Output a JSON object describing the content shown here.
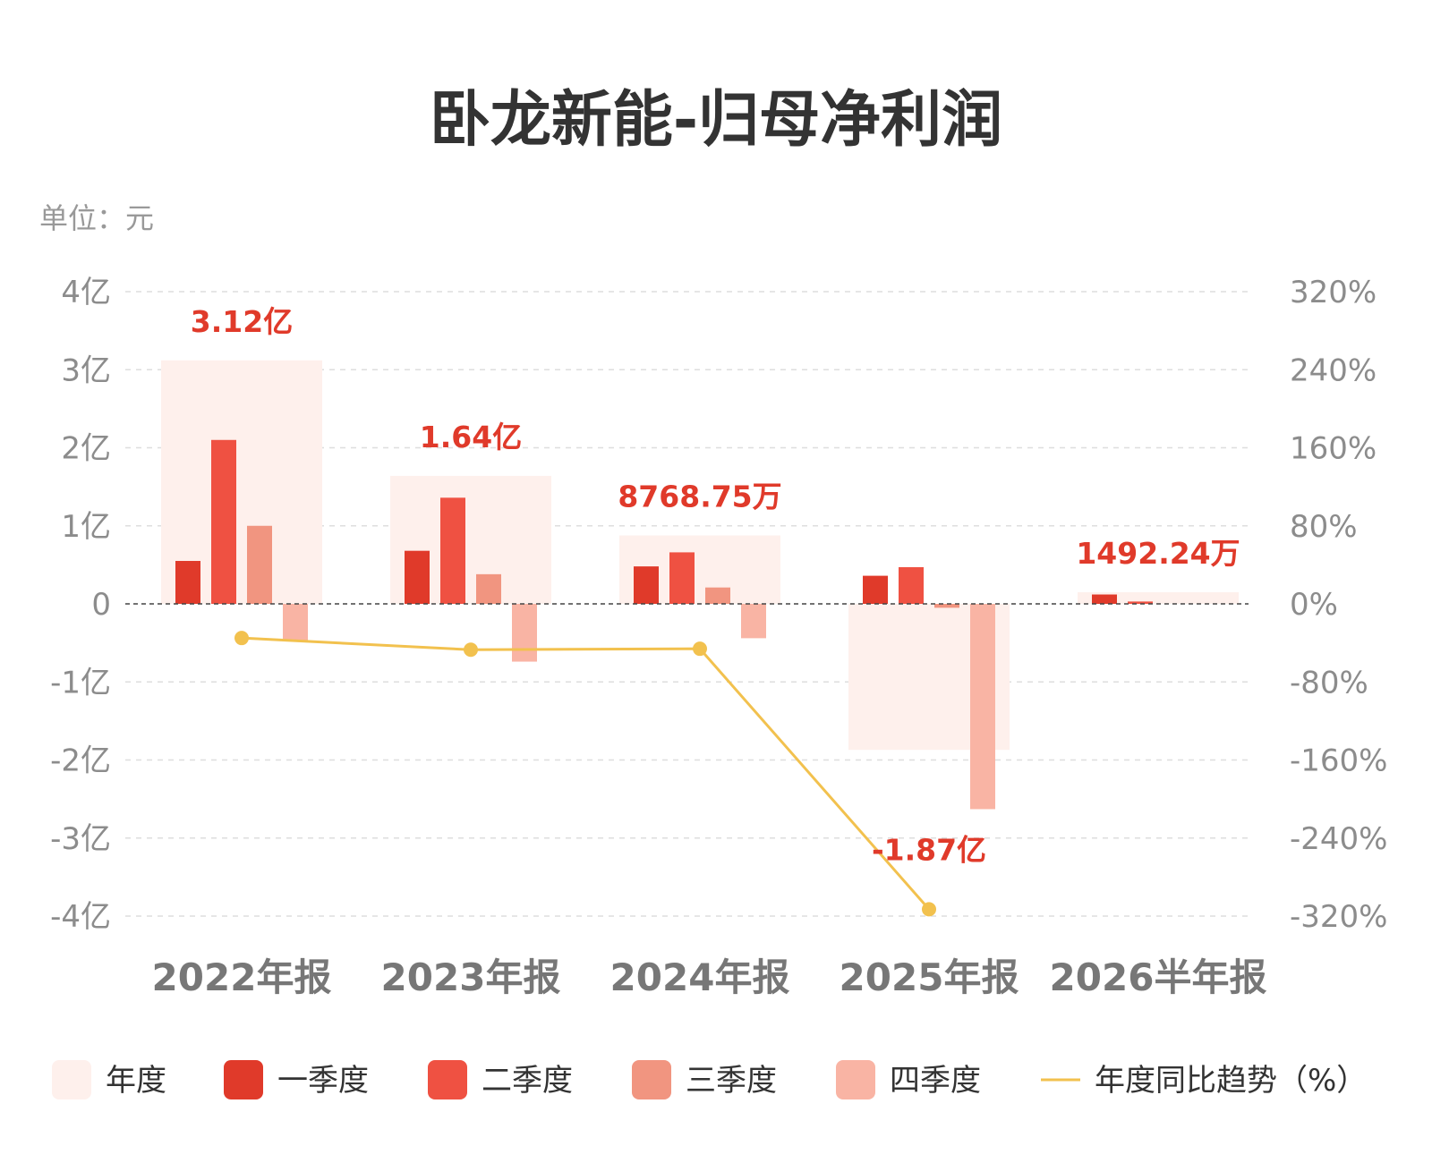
{
  "title": "卧龙新能-归母净利润",
  "unit_label": "单位：元",
  "colors": {
    "annual": "#fef0ec",
    "q1": "#e03a2a",
    "q2": "#ef5142",
    "q3": "#f19580",
    "q4": "#f9b4a4",
    "trend": "#f2c14e",
    "label": "#e03a2a"
  },
  "chart_data": {
    "type": "bar",
    "title": "卧龙新能-归母净利润",
    "categories": [
      "2022年报",
      "2023年报",
      "2024年报",
      "2025年报",
      "2026半年报"
    ],
    "left_axis": {
      "ylim": [
        -400000000,
        400000000
      ],
      "ticks": [
        400000000,
        300000000,
        200000000,
        100000000,
        0,
        -100000000,
        -200000000,
        -300000000,
        -400000000
      ],
      "tick_labels": [
        "4亿",
        "3亿",
        "2亿",
        "1亿",
        "0",
        "-1亿",
        "-2亿",
        "-3亿",
        "-4亿"
      ]
    },
    "right_axis": {
      "ylim": [
        -320,
        320
      ],
      "tick_labels": [
        "320%",
        "240%",
        "160%",
        "80%",
        "0%",
        "-80%",
        "-160%",
        "-240%",
        "-320%"
      ]
    },
    "annual_values": [
      312000000,
      164000000,
      87687500,
      -187000000,
      14922400
    ],
    "annual_labels": [
      "3.12亿",
      "1.64亿",
      "8768.75万",
      "-1.87亿",
      "1492.24万"
    ],
    "series": [
      {
        "name": "一季度",
        "values": [
          55000000,
          68000000,
          48000000,
          36000000,
          12000000
        ]
      },
      {
        "name": "二季度",
        "values": [
          210000000,
          136000000,
          66000000,
          47000000,
          3000000
        ]
      },
      {
        "name": "三季度",
        "values": [
          100000000,
          38000000,
          21000000,
          -5000000,
          null
        ]
      },
      {
        "name": "四季度",
        "values": [
          -48000000,
          -74000000,
          -44000000,
          -263000000,
          null
        ]
      }
    ],
    "trend": {
      "name": "年度同比趋势（%）",
      "values": [
        -35,
        -47,
        -46,
        -313,
        null
      ]
    },
    "legend": [
      "年度",
      "一季度",
      "二季度",
      "三季度",
      "四季度",
      "年度同比趋势（%）"
    ],
    "legend_position": "bottom",
    "grid": true
  }
}
